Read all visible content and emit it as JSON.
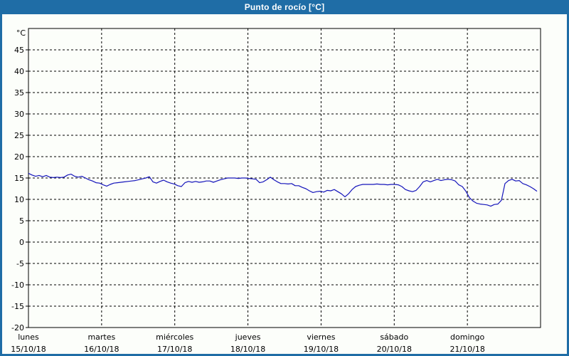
{
  "window": {
    "title": "Punto de rocío [°C]"
  },
  "colors": {
    "titlebar_bg": "#1f6da6",
    "titlebar_text": "#ffffff",
    "frame_border": "#1f6da6",
    "panel_background": "#fcfefa",
    "line": "#1515bb",
    "grid": "#000000",
    "axis": "#000000",
    "label_text": "#000000"
  },
  "chart_data": {
    "type": "line",
    "title": "Punto de rocío [°C]",
    "ylabel": "°C",
    "grid": "dashed",
    "legend": "none",
    "y_axis": {
      "min": -20,
      "max": 50,
      "tick_step": 5,
      "ticks": [
        45,
        40,
        35,
        30,
        25,
        20,
        15,
        10,
        5,
        0,
        -5,
        -10,
        -15,
        -20
      ]
    },
    "x_axis": {
      "span_days": 7,
      "days": [
        {
          "name": "lunes",
          "date": "15/10/18"
        },
        {
          "name": "martes",
          "date": "16/10/18"
        },
        {
          "name": "miércoles",
          "date": "17/10/18"
        },
        {
          "name": "jueves",
          "date": "18/10/18"
        },
        {
          "name": "viernes",
          "date": "19/10/18"
        },
        {
          "name": "sábado",
          "date": "20/10/18"
        },
        {
          "name": "domingo",
          "date": "21/10/18"
        }
      ]
    },
    "series": [
      {
        "name": "Punto de rocío",
        "color": "#1515bb",
        "sampling": "evenly spaced across the 7-day span, Mon 00:00 onward",
        "values": [
          16.1,
          15.7,
          15.4,
          15.6,
          15.3,
          15.6,
          15.2,
          15.1,
          15.2,
          15.1,
          15.2,
          15.7,
          15.9,
          15.4,
          15.2,
          15.4,
          15.0,
          14.6,
          14.3,
          13.9,
          13.8,
          13.4,
          13.1,
          13.5,
          13.8,
          13.9,
          14.0,
          14.1,
          14.2,
          14.3,
          14.4,
          14.6,
          14.8,
          15.0,
          15.3,
          14.1,
          13.8,
          14.2,
          14.5,
          14.1,
          13.8,
          13.6,
          13.2,
          13.0,
          13.9,
          14.2,
          14.0,
          14.2,
          14.0,
          14.1,
          14.3,
          14.3,
          14.0,
          14.3,
          14.6,
          14.8,
          15.0,
          15.0,
          15.0,
          14.9,
          15.0,
          15.0,
          14.9,
          14.8,
          14.7,
          13.9,
          14.1,
          14.6,
          15.2,
          14.6,
          14.1,
          13.7,
          13.7,
          13.6,
          13.7,
          13.2,
          13.2,
          12.8,
          12.5,
          12.0,
          11.6,
          11.8,
          11.9,
          11.7,
          12.1,
          12.0,
          12.3,
          11.8,
          11.3,
          10.6,
          11.3,
          12.3,
          13.0,
          13.3,
          13.5,
          13.5,
          13.5,
          13.5,
          13.6,
          13.5,
          13.5,
          13.4,
          13.5,
          13.5,
          13.4,
          13.0,
          12.3,
          12.0,
          11.8,
          12.1,
          13.0,
          14.1,
          14.4,
          14.1,
          14.4,
          14.7,
          14.4,
          14.6,
          14.7,
          14.6,
          14.3,
          13.4,
          13.0,
          11.9,
          10.4,
          9.6,
          9.1,
          8.9,
          8.8,
          8.7,
          8.4,
          8.8,
          8.9,
          9.8,
          13.7,
          14.4,
          14.7,
          14.3,
          14.4,
          13.7,
          13.4,
          13.0,
          12.5,
          11.9
        ]
      }
    ]
  }
}
